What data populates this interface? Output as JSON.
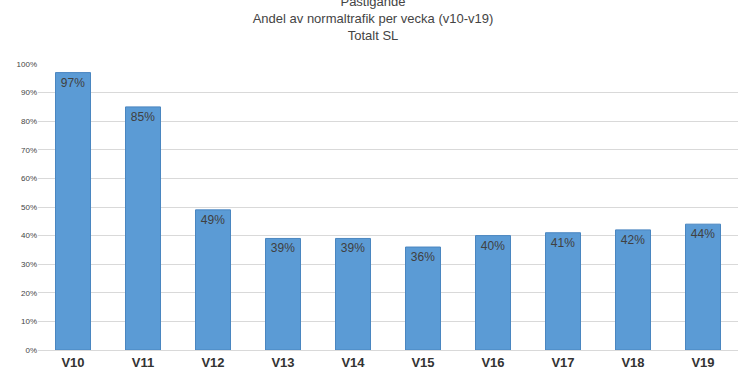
{
  "chart_data": {
    "type": "bar",
    "title": "Påstigande",
    "subtitle": [
      "Andel av normaltrafik per vecka (v10-v19)",
      "Totalt SL"
    ],
    "categories": [
      "V10",
      "V11",
      "V12",
      "V13",
      "V14",
      "V15",
      "V16",
      "V17",
      "V18",
      "V19"
    ],
    "values": [
      97,
      85,
      49,
      39,
      39,
      36,
      40,
      41,
      42,
      44
    ],
    "value_labels": [
      "97%",
      "85%",
      "49%",
      "39%",
      "39%",
      "36%",
      "40%",
      "41%",
      "42%",
      "44%"
    ],
    "color": "#5b9bd5",
    "ylim": [
      0,
      100
    ],
    "yticks": [
      {
        "value": 0,
        "label": "0%"
      },
      {
        "value": 10,
        "label": "10%"
      },
      {
        "value": 20,
        "label": "20%"
      },
      {
        "value": 30,
        "label": "30%"
      },
      {
        "value": 40,
        "label": "40%"
      },
      {
        "value": 50,
        "label": "50%"
      },
      {
        "value": 60,
        "label": "60%"
      },
      {
        "value": 70,
        "label": "70%"
      },
      {
        "value": 80,
        "label": "80%"
      },
      {
        "value": 90,
        "label": "90%"
      },
      {
        "value": 100,
        "label": "100%"
      }
    ],
    "grid": true,
    "data_labels": true
  }
}
